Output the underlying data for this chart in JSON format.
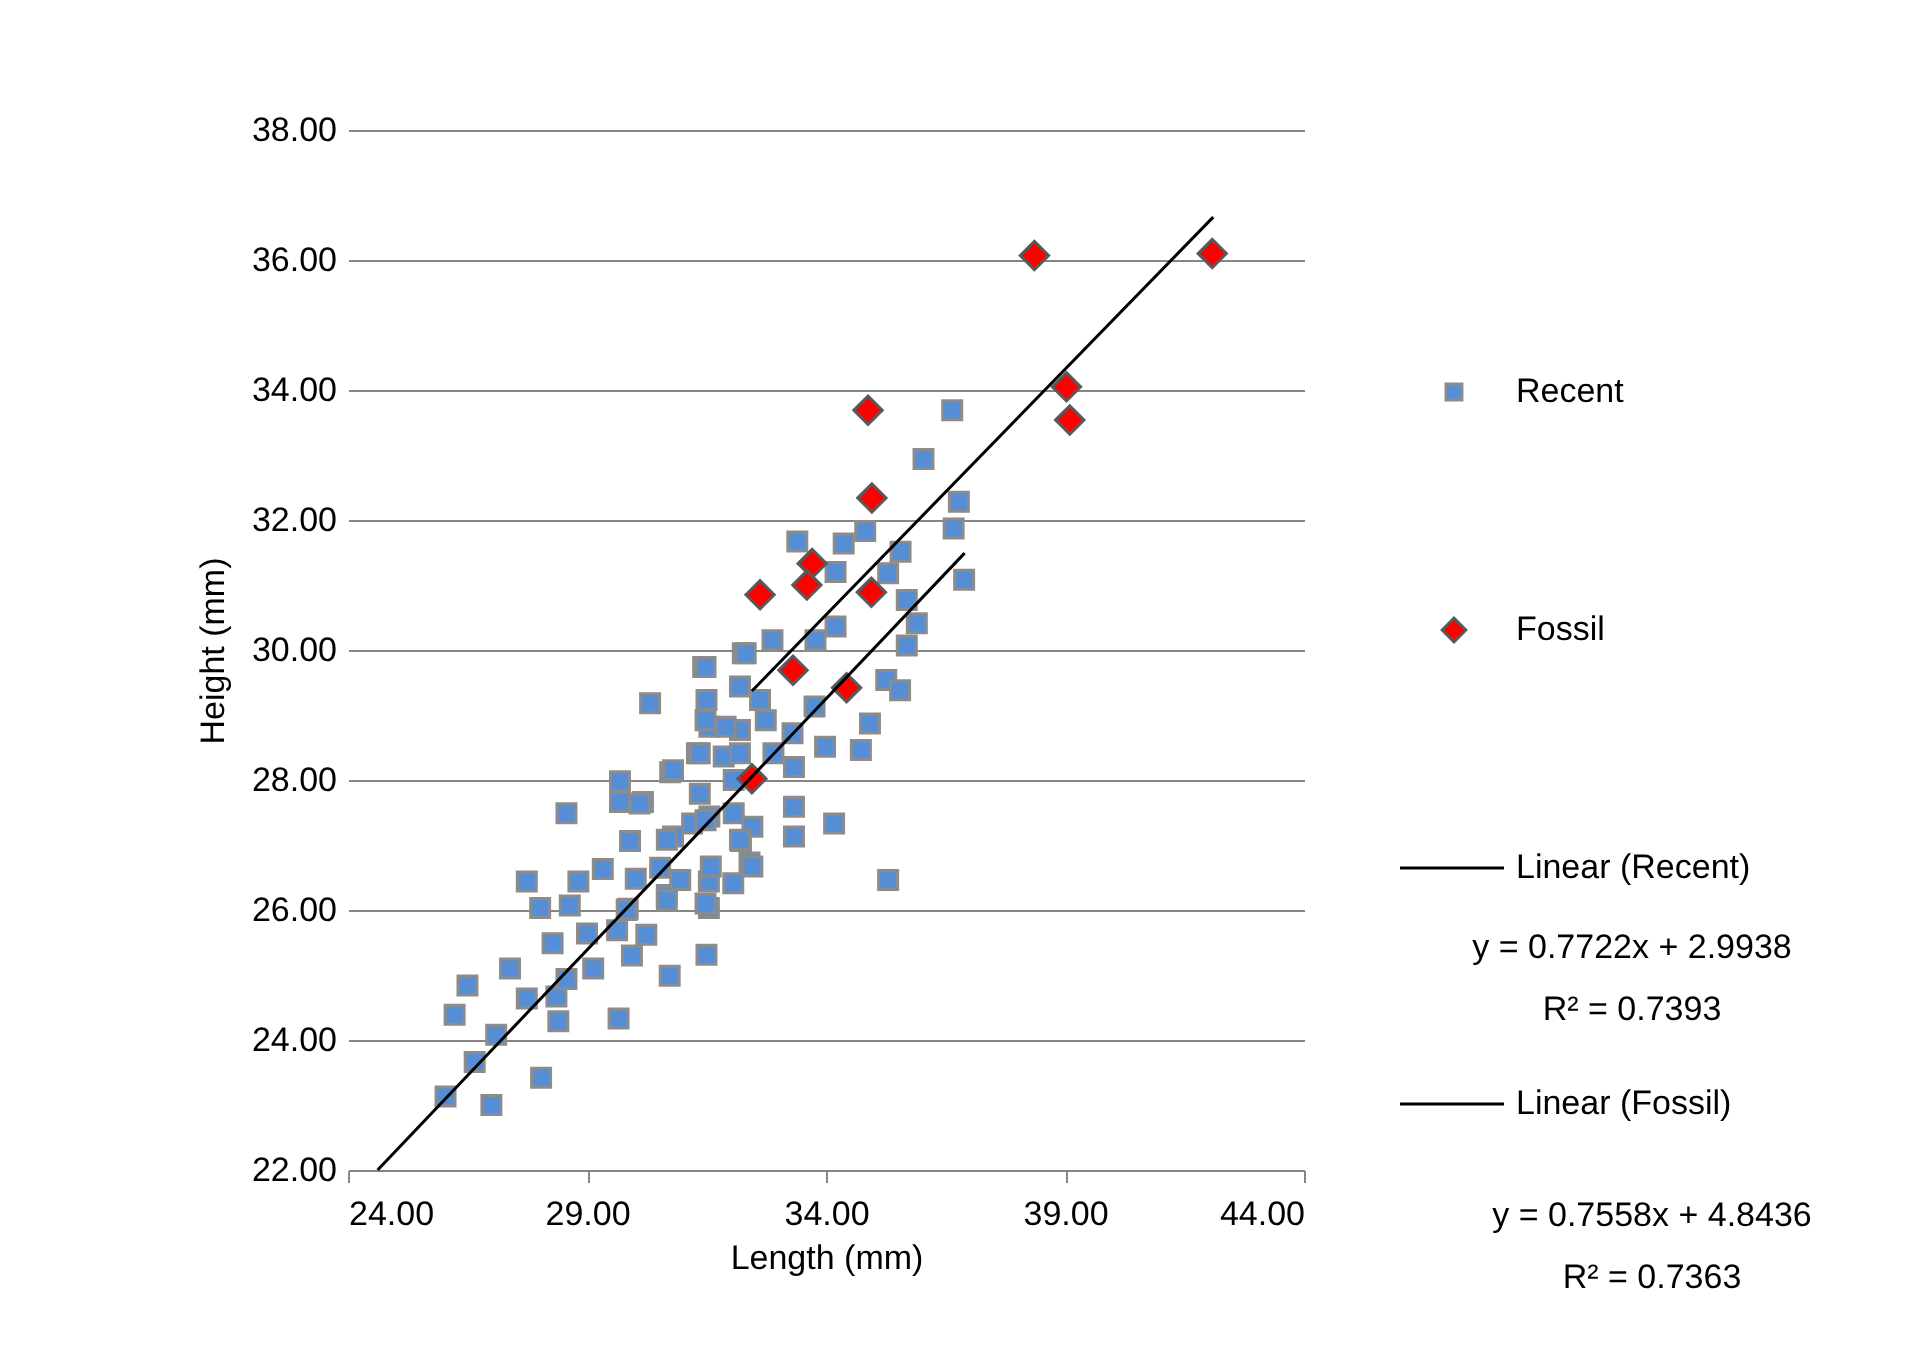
{
  "chart_data": {
    "type": "scatter",
    "xlabel": "Length (mm)",
    "ylabel": "Height (mm)",
    "xlim": [
      24,
      44
    ],
    "ylim": [
      22,
      38
    ],
    "xticks": [
      {
        "value": 24,
        "label": "24.00"
      },
      {
        "value": 29,
        "label": "29.00"
      },
      {
        "value": 34,
        "label": "34.00"
      },
      {
        "value": 39,
        "label": "39.00"
      },
      {
        "value": 44,
        "label": "44.00"
      }
    ],
    "yticks": [
      {
        "value": 22,
        "label": "22.00"
      },
      {
        "value": 24,
        "label": "24.00"
      },
      {
        "value": 26,
        "label": "26.00"
      },
      {
        "value": 28,
        "label": "28.00"
      },
      {
        "value": 30,
        "label": "30.00"
      },
      {
        "value": 32,
        "label": "32.00"
      },
      {
        "value": 34,
        "label": "34.00"
      },
      {
        "value": 36,
        "label": "36.00"
      },
      {
        "value": 38,
        "label": "38.00"
      }
    ],
    "grid": "y",
    "legend": "right",
    "annotations": [
      "y = 0.7722x + 2.9938\nR² = 0.7393",
      "y = 0.7558x + 4.8436\nR² = 0.7363"
    ],
    "series": [
      {
        "name": "Recent",
        "marker": "square",
        "color": "#558ed5",
        "x": [
          26.04,
          27.0,
          26.65,
          27.1,
          28.04,
          26.23,
          26.5,
          27.39,
          27.74,
          28.36,
          28.4,
          28.57,
          29.13,
          29.66,
          30.73,
          31.5,
          29.94,
          30.24,
          29.63,
          28.28,
          27.74,
          28.02,
          28.64,
          28.82,
          29.0,
          29.33,
          29.85,
          30.02,
          30.53,
          30.67,
          31.55,
          32.06,
          31.55,
          28.57,
          29.69,
          29.69,
          30.17,
          30.74,
          29.9,
          30.8,
          31.56,
          32.22,
          31.2,
          30.32,
          31.43,
          32.26,
          31.5,
          31.3,
          31.86,
          31.56,
          32.2,
          32.4,
          36.64,
          36.04,
          36.78,
          36.67,
          36.89,
          35.56,
          35.3,
          34.82,
          34.37,
          33.4,
          34.2,
          35.69,
          35.9,
          35.69,
          35.26,
          35.55,
          34.92,
          34.73,
          34.17,
          33.33,
          33.98,
          33.76,
          33.33,
          33.33,
          34.2,
          33.78,
          32.88,
          32.32,
          31.48,
          32.2,
          32.62,
          31.48,
          31.9,
          32.74,
          33.3,
          31.36,
          32.2,
          32.9,
          30.8,
          32.07,
          30.1,
          31.36,
          32.07,
          30.67,
          31.48,
          32.46,
          32.2,
          31.59,
          32.46,
          30.95,
          30.67,
          31.48,
          29.83,
          35.3
        ],
        "values": [
          23.13,
          23.0,
          23.66,
          24.08,
          23.42,
          24.39,
          24.84,
          25.1,
          24.64,
          24.67,
          24.29,
          24.94,
          25.1,
          24.33,
          24.99,
          25.31,
          25.3,
          25.62,
          25.69,
          25.49,
          26.44,
          26.03,
          26.07,
          26.44,
          25.64,
          26.63,
          26.02,
          26.48,
          26.65,
          26.23,
          26.44,
          26.41,
          26.03,
          27.49,
          27.98,
          27.66,
          27.66,
          28.12,
          27.06,
          27.13,
          27.44,
          27.06,
          27.33,
          29.18,
          29.74,
          29.95,
          29.23,
          28.41,
          28.36,
          28.82,
          28.77,
          26.73,
          33.69,
          32.94,
          32.28,
          31.87,
          31.08,
          31.51,
          31.18,
          31.83,
          31.64,
          31.67,
          31.2,
          30.77,
          30.41,
          30.07,
          29.54,
          29.38,
          28.87,
          28.46,
          27.33,
          27.13,
          28.51,
          29.13,
          28.2,
          27.59,
          30.36,
          30.15,
          30.15,
          29.95,
          29.74,
          29.44,
          29.23,
          28.92,
          28.82,
          28.92,
          28.72,
          28.41,
          28.41,
          28.41,
          28.15,
          28.0,
          27.64,
          27.79,
          27.49,
          27.08,
          27.38,
          27.28,
          27.08,
          26.67,
          26.67,
          26.46,
          26.15,
          26.1,
          26.0,
          26.46
        ]
      },
      {
        "name": "Fossil",
        "marker": "diamond",
        "color": "#ff0000",
        "x": [
          38.36,
          42.08,
          39.03,
          39.1,
          34.88,
          34.96,
          33.71,
          33.6,
          32.62,
          34.95,
          33.31,
          34.43,
          32.45
        ],
        "values": [
          36.07,
          36.1,
          34.05,
          33.54,
          33.69,
          32.34,
          31.33,
          31.0,
          30.85,
          30.89,
          29.69,
          29.42,
          28.02
        ]
      },
      {
        "name": "Linear (Recent)",
        "type": "line",
        "marker": "none",
        "line_style": "solid",
        "color": "#000000",
        "x": [
          24.62,
          36.9
        ],
        "values": [
          22.0,
          31.49
        ]
      },
      {
        "name": "Linear (Fossil)",
        "type": "line",
        "marker": "none",
        "line_style": "solid",
        "color": "#000000",
        "x": [
          32.45,
          42.1
        ],
        "values": [
          29.37,
          36.66
        ]
      }
    ]
  }
}
